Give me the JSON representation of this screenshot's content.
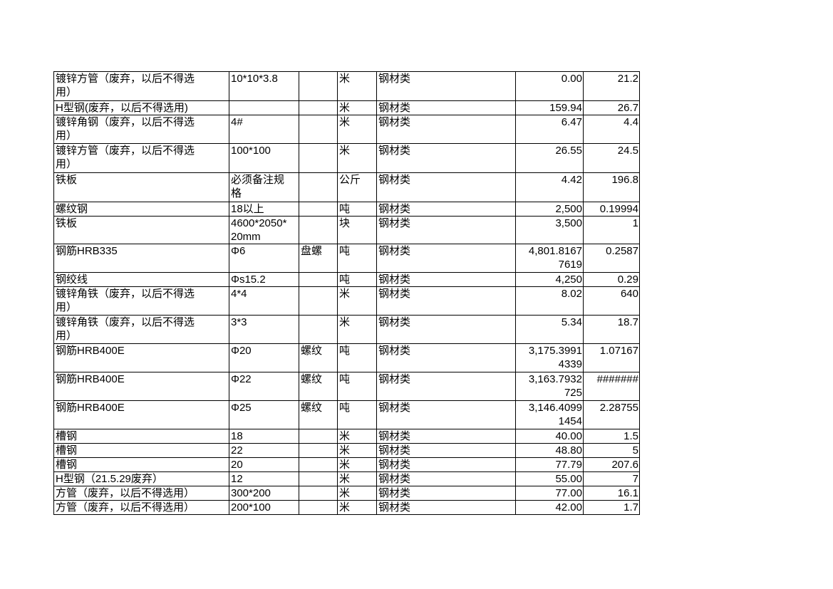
{
  "rows": [
    {
      "name": "镀锌方管（废弃，以后不得选用）",
      "spec": "10*10*3.8",
      "type": "",
      "unit": "米",
      "category": "钢材类",
      "price": "0.00",
      "qty": "21.2"
    },
    {
      "name": "H型钢(废弃，以后不得选用)",
      "spec": "",
      "type": "",
      "unit": "米",
      "category": "钢材类",
      "price": "159.94",
      "qty": "26.7"
    },
    {
      "name": "镀锌角钢（废弃，以后不得选用）",
      "spec": "4#",
      "type": "",
      "unit": "米",
      "category": "钢材类",
      "price": "6.47",
      "qty": "4.4"
    },
    {
      "name": "镀锌方管（废弃，以后不得选用）",
      "spec": "100*100",
      "type": "",
      "unit": "米",
      "category": "钢材类",
      "price": "26.55",
      "qty": "24.5"
    },
    {
      "name": "铁板",
      "spec": "必须备注规格",
      "type": "",
      "unit": "公斤",
      "category": "钢材类",
      "price": "4.42",
      "qty": "196.8"
    },
    {
      "name": "螺纹钢",
      "spec": "18以上",
      "type": "",
      "unit": "吨",
      "category": "钢材类",
      "price": "2,500",
      "qty": "0.19994"
    },
    {
      "name": "铁板",
      "spec": "4600*2050*20mm",
      "type": "",
      "unit": "块",
      "category": "钢材类",
      "price": "3,500",
      "qty": "1"
    },
    {
      "name": "钢筋HRB335",
      "spec": "Φ6",
      "type": "盘螺",
      "unit": "吨",
      "category": "钢材类",
      "price": "4,801.81677619",
      "qty": "0.2587"
    },
    {
      "name": "钢绞线",
      "spec": "Φs15.2",
      "type": "",
      "unit": "吨",
      "category": "钢材类",
      "price": "4,250",
      "qty": "0.29"
    },
    {
      "name": "镀锌角铁（废弃，以后不得选用）",
      "spec": "4*4",
      "type": "",
      "unit": "米",
      "category": "钢材类",
      "price": "8.02",
      "qty": "640"
    },
    {
      "name": "镀锌角铁（废弃，以后不得选用）",
      "spec": "3*3",
      "type": "",
      "unit": "米",
      "category": "钢材类",
      "price": "5.34",
      "qty": "18.7"
    },
    {
      "name": "钢筋HRB400E",
      "spec": "Φ20",
      "type": "螺纹",
      "unit": "吨",
      "category": "钢材类",
      "price": "3,175.39914339",
      "qty": "1.07167"
    },
    {
      "name": "钢筋HRB400E",
      "spec": "Φ22",
      "type": "螺纹",
      "unit": "吨",
      "category": "钢材类",
      "price": "3,163.7932725",
      "qty": "#######"
    },
    {
      "name": "钢筋HRB400E",
      "spec": "Φ25",
      "type": "螺纹",
      "unit": "吨",
      "category": "钢材类",
      "price": "3,146.40991454",
      "qty": "2.28755"
    },
    {
      "name": "槽钢",
      "spec": "18",
      "type": "",
      "unit": "米",
      "category": "钢材类",
      "price": "40.00",
      "qty": "1.5"
    },
    {
      "name": "槽钢",
      "spec": "22",
      "type": "",
      "unit": "米",
      "category": "钢材类",
      "price": "48.80",
      "qty": "5"
    },
    {
      "name": "槽钢",
      "spec": "20",
      "type": "",
      "unit": "米",
      "category": "钢材类",
      "price": "77.79",
      "qty": "207.6"
    },
    {
      "name": "H型钢（21.5.29废弃）",
      "spec": "12",
      "type": "",
      "unit": "米",
      "category": "钢材类",
      "price": "55.00",
      "qty": "7"
    },
    {
      "name": "方管（废弃，以后不得选用）",
      "spec": "300*200",
      "type": "",
      "unit": "米",
      "category": "钢材类",
      "price": "77.00",
      "qty": "16.1"
    },
    {
      "name": "方管（废弃，以后不得选用）",
      "spec": "200*100",
      "type": "",
      "unit": "米",
      "category": "钢材类",
      "price": "42.00",
      "qty": "1.7"
    }
  ]
}
